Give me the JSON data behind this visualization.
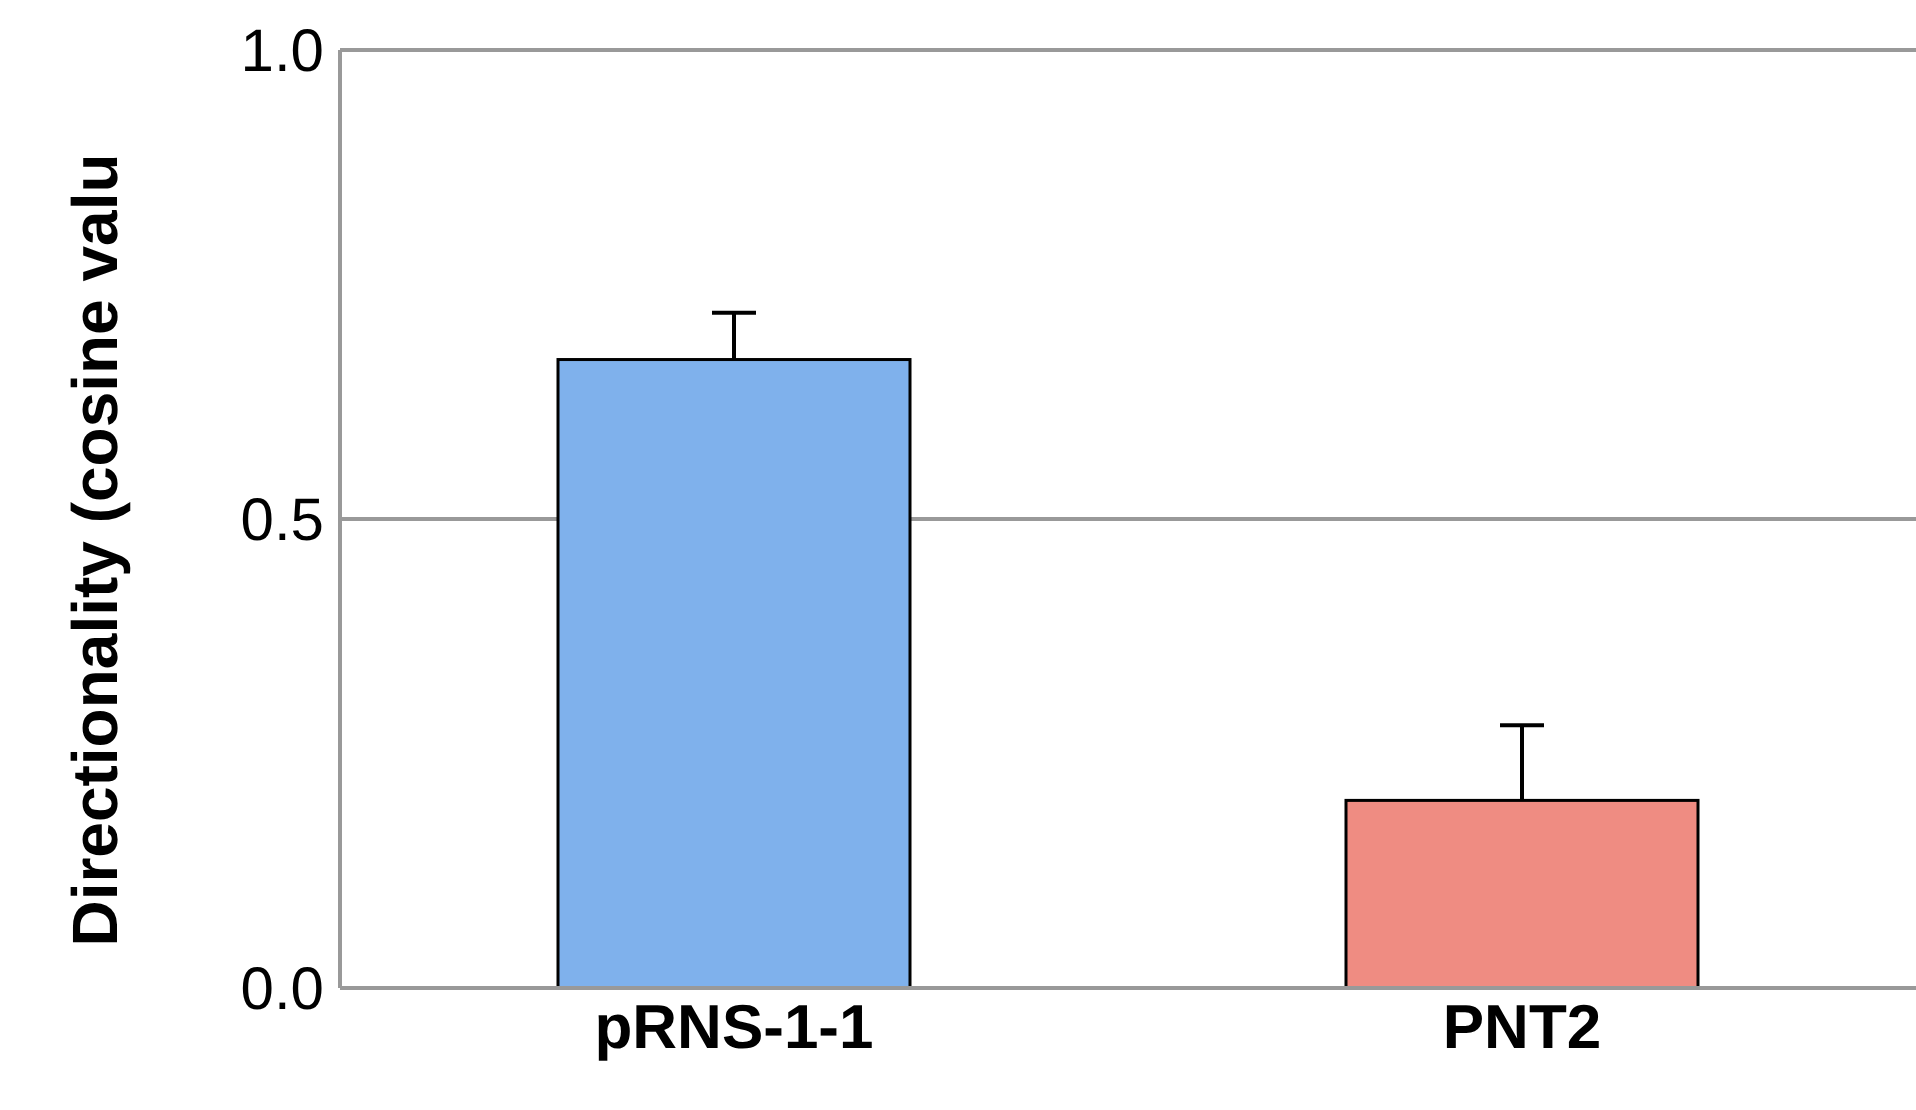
{
  "chart_data": {
    "type": "bar",
    "ylabel": "Directionality (cosine valu",
    "categories": [
      "pRNS-1-1",
      "PNT2"
    ],
    "values": [
      0.67,
      0.2
    ],
    "colors": [
      "#7fb1ec",
      "#ef8c82"
    ],
    "errors": [
      [
        0.67,
        0.72
      ],
      [
        0.2,
        0.28
      ]
    ],
    "ylim": [
      0,
      1
    ],
    "yticks": [
      {
        "value": 0,
        "label": "0.0"
      },
      {
        "value": 0.5,
        "label": "0.5"
      },
      {
        "value": 1,
        "label": "1.0"
      }
    ],
    "grid": "y"
  }
}
